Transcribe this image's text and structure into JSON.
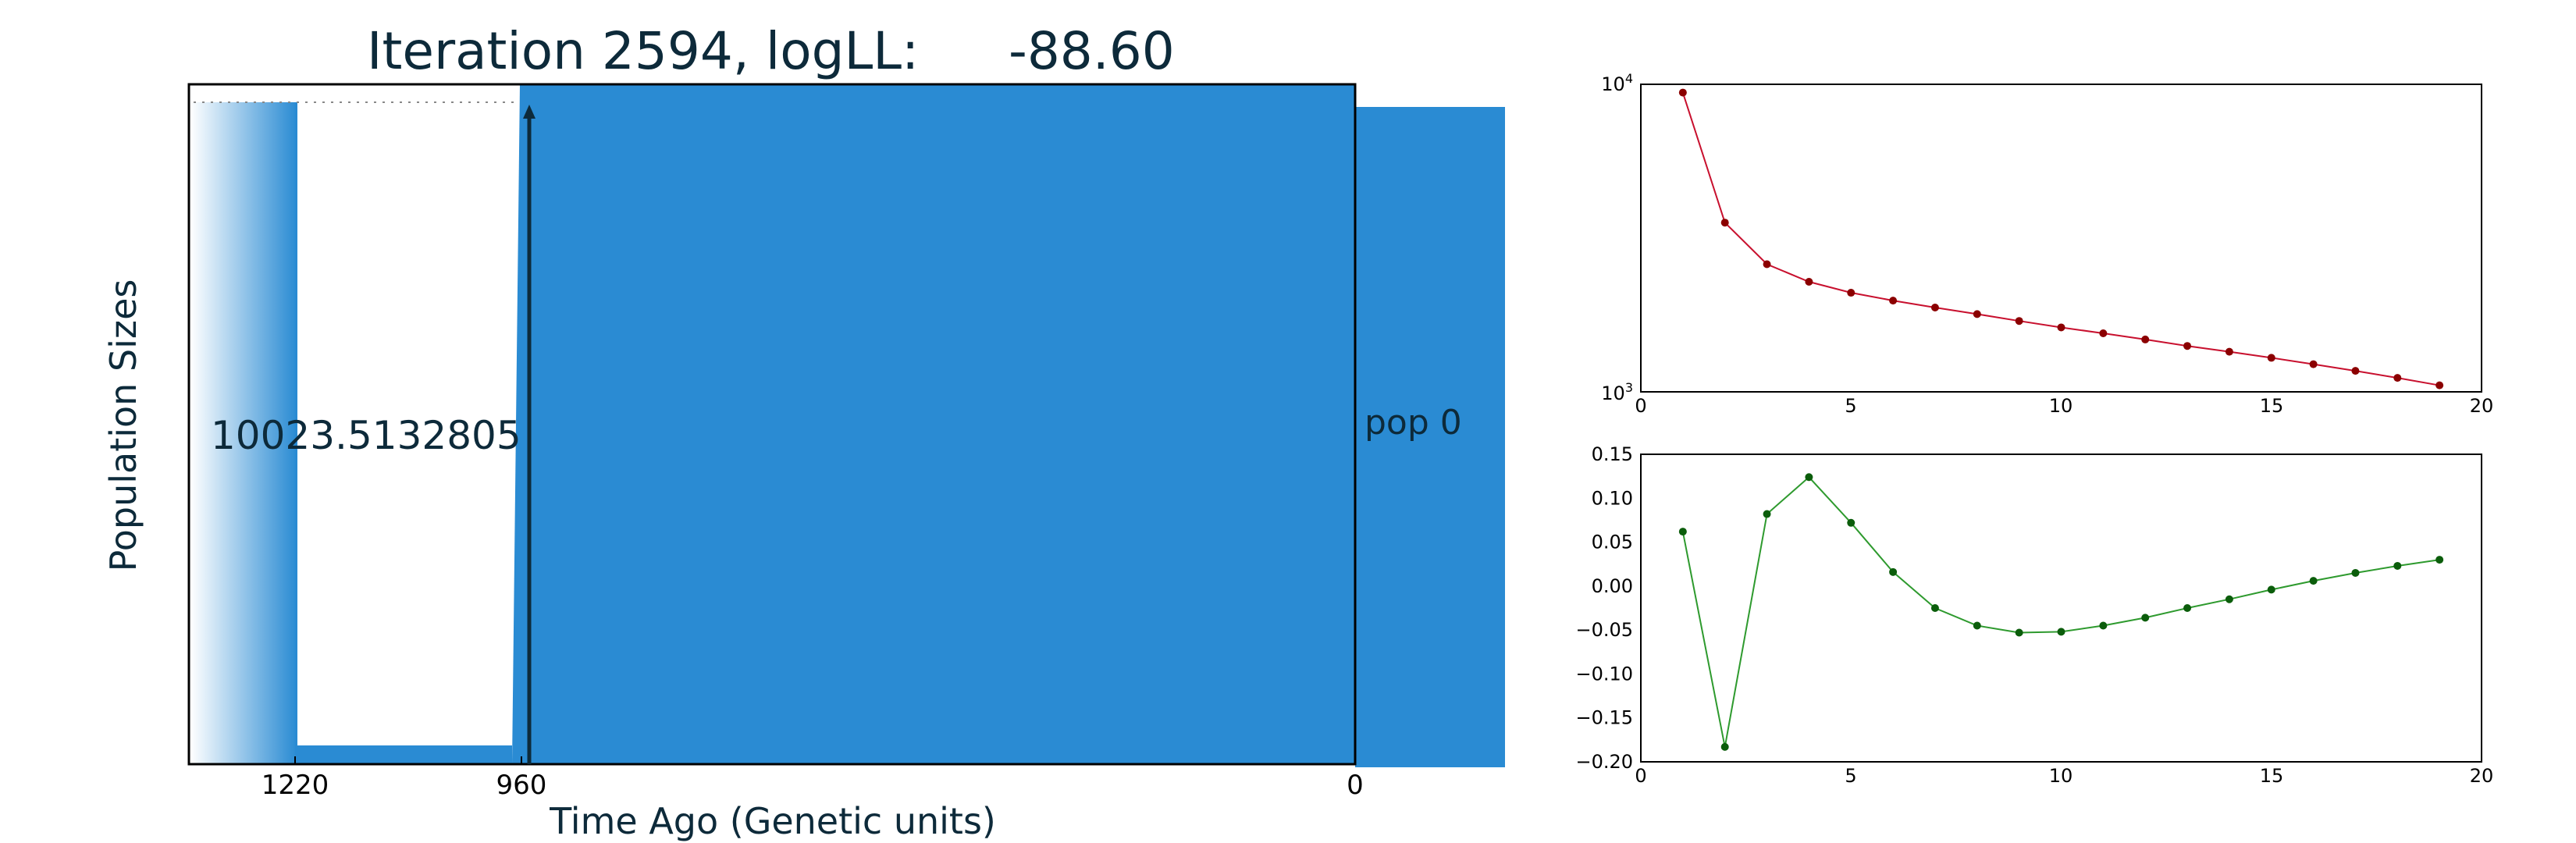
{
  "main_panel": {
    "title_prefix": "Iteration 2594, logLL:",
    "title_value": "-88.60",
    "ylabel": "Population Sizes",
    "xlabel": "Time Ago (Genetic units)",
    "size_label": "10023.5132805",
    "pop_label": "pop 0",
    "fill_color": "#2a8bd3",
    "text_color": "#0d2a3a"
  },
  "chart_data": [
    {
      "type": "area",
      "title": "Iteration 2594, logLL:      -88.60",
      "xlabel": "Time Ago (Genetic units)",
      "ylabel": "Population Sizes",
      "xticks": [
        "1220",
        "960",
        "0"
      ],
      "annotations": [
        "10023.5132805",
        "pop 0"
      ],
      "x_reversed": true,
      "grid": false
    },
    {
      "type": "line",
      "yscale": "log",
      "xlim": [
        0,
        20
      ],
      "ylim": [
        1000,
        10000
      ],
      "xticks": [
        "0",
        "5",
        "10",
        "15",
        "20"
      ],
      "yticks": [
        "10^3",
        "10^4"
      ],
      "color": "#c8102e",
      "marker_color": "#8b0000",
      "x": [
        1,
        2,
        3,
        4,
        5,
        6,
        7,
        8,
        9,
        10,
        11,
        12,
        13,
        14,
        15,
        16,
        17,
        18,
        19
      ],
      "values": [
        9400,
        3550,
        2600,
        2280,
        2100,
        1980,
        1880,
        1790,
        1700,
        1620,
        1550,
        1480,
        1410,
        1350,
        1290,
        1230,
        1170,
        1110,
        1050
      ],
      "grid": false
    },
    {
      "type": "line",
      "xlim": [
        0,
        20
      ],
      "ylim": [
        -0.2,
        0.15
      ],
      "xticks": [
        "0",
        "5",
        "10",
        "15",
        "20"
      ],
      "yticks": [
        "0.15",
        "0.10",
        "0.05",
        "0.00",
        "−0.05",
        "−0.10",
        "−0.15",
        "−0.20"
      ],
      "color": "#2e9a2e",
      "marker_color": "#0b5d0b",
      "x": [
        1,
        2,
        3,
        4,
        5,
        6,
        7,
        8,
        9,
        10,
        11,
        12,
        13,
        14,
        15,
        16,
        17,
        18,
        19
      ],
      "values": [
        0.062,
        -0.183,
        0.082,
        0.124,
        0.072,
        0.016,
        -0.025,
        -0.045,
        -0.053,
        -0.052,
        -0.045,
        -0.036,
        -0.025,
        -0.015,
        -0.004,
        0.006,
        0.015,
        0.023,
        0.03
      ],
      "grid": false
    }
  ]
}
